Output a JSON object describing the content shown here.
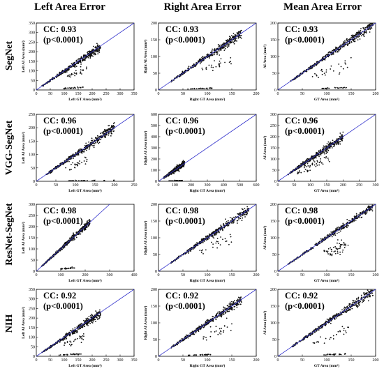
{
  "figure": {
    "column_titles": [
      "Left Area Error",
      "Right Area Error",
      "Mean Area Error"
    ],
    "row_titles": [
      "SegNet",
      "VGG-SegNet",
      "ResNet-SegNet",
      "NIH"
    ]
  },
  "chart_data": [
    {
      "type": "scatter",
      "row": "SegNet",
      "column": "Left Area Error",
      "xlabel": "Left GT Area (mm²)",
      "ylabel": "Left AI Area (mm²)",
      "xlim": [
        0,
        350
      ],
      "ylim": [
        0,
        350
      ],
      "xticks": [
        0,
        50,
        100,
        150,
        200,
        250,
        300,
        350
      ],
      "yticks": [
        0,
        50,
        100,
        150,
        200,
        250,
        300,
        350
      ],
      "cc_label": "CC: 0.93",
      "p_label": "(p<0.0001)",
      "cluster": [
        20,
        230
      ],
      "slope": 0.98,
      "spread": 0.08,
      "outlier_bands": [
        [
          90,
          170,
          0.08
        ],
        [
          110,
          180,
          0.62
        ]
      ]
    },
    {
      "type": "scatter",
      "row": "SegNet",
      "column": "Right Area Error",
      "xlabel": "Right GT Area (mm²)",
      "ylabel": "Right AI Area (mm²)",
      "xlim": [
        0,
        200
      ],
      "ylim": [
        0,
        200
      ],
      "xticks": [
        0,
        50,
        100,
        150,
        200
      ],
      "yticks": [
        0,
        50,
        100,
        150,
        200
      ],
      "cc_label": "CC: 0.93",
      "p_label": "(p<0.0001)",
      "cluster": [
        25,
        170
      ],
      "slope": 1.0,
      "spread": 0.07,
      "outlier_bands": [
        [
          60,
          110,
          0.05
        ],
        [
          80,
          150,
          0.65
        ]
      ]
    },
    {
      "type": "scatter",
      "row": "SegNet",
      "column": "Mean Area Error",
      "xlabel": "GT Area (mm²)",
      "ylabel": "AI Area (mm²)",
      "xlim": [
        0,
        200
      ],
      "ylim": [
        0,
        200
      ],
      "xticks": [
        0,
        50,
        100,
        150,
        200
      ],
      "yticks": [
        0,
        50,
        100,
        150,
        200
      ],
      "cc_label": "CC: 0.93",
      "p_label": "(p<0.0001)",
      "cluster": [
        25,
        195
      ],
      "slope": 1.0,
      "spread": 0.06,
      "outlier_bands": [
        [
          70,
          150,
          0.55
        ],
        [
          90,
          140,
          0.05
        ]
      ]
    },
    {
      "type": "scatter",
      "row": "VGG-SegNet",
      "column": "Left Area Error",
      "xlabel": "Left GT Area (mm²)",
      "ylabel": "Left AI Area (mm²)",
      "xlim": [
        0,
        250
      ],
      "ylim": [
        0,
        250
      ],
      "xticks": [
        0,
        50,
        100,
        150,
        200,
        250
      ],
      "yticks": [
        0,
        50,
        100,
        150,
        200,
        250
      ],
      "cc_label": "CC: 0.96",
      "p_label": "(p<0.0001)",
      "cluster": [
        25,
        200
      ],
      "slope": 1.0,
      "spread": 0.08,
      "outlier_bands": [
        [
          80,
          200,
          0.02
        ],
        [
          70,
          130,
          0.6
        ]
      ]
    },
    {
      "type": "scatter",
      "row": "VGG-SegNet",
      "column": "Right Area Error",
      "xlabel": "Right GT Area (mm²)",
      "ylabel": "Right AI Area (mm²)",
      "xlim": [
        0,
        600
      ],
      "ylim": [
        0,
        600
      ],
      "xticks": [
        0,
        100,
        200,
        300,
        400,
        500,
        600
      ],
      "yticks": [
        0,
        100,
        200,
        300,
        400,
        500,
        600
      ],
      "cc_label": "CC: 0.96",
      "p_label": "(p<0.0001)",
      "cluster": [
        30,
        160
      ],
      "slope": 1.0,
      "spread": 0.15,
      "outlier_bands": [
        [
          60,
          150,
          0.05
        ]
      ]
    },
    {
      "type": "scatter",
      "row": "VGG-SegNet",
      "column": "Mean Area Error",
      "xlabel": "GT Area (mm²)",
      "ylabel": "AI Area (mm²)",
      "xlim": [
        0,
        300
      ],
      "ylim": [
        0,
        300
      ],
      "xticks": [
        0,
        50,
        100,
        150,
        200,
        250,
        300
      ],
      "yticks": [
        0,
        50,
        100,
        150,
        200,
        250,
        300
      ],
      "cc_label": "CC: 0.96",
      "p_label": "(p<0.0001)",
      "cluster": [
        30,
        200
      ],
      "slope": 1.0,
      "spread": 0.08,
      "outlier_bands": [
        [
          60,
          140,
          0.6
        ],
        [
          80,
          160,
          0.75
        ]
      ]
    },
    {
      "type": "scatter",
      "row": "ResNet-SegNet",
      "column": "Left Area Error",
      "xlabel": "Left GT Area (mm²)",
      "ylabel": "Left AI Area (mm²)",
      "xlim": [
        0,
        400
      ],
      "ylim": [
        0,
        300
      ],
      "xticks": [
        0,
        100,
        200,
        300,
        400
      ],
      "yticks": [
        0,
        50,
        100,
        150,
        200,
        250,
        300
      ],
      "cc_label": "CC: 0.98",
      "p_label": "(p<0.0001)",
      "cluster": [
        20,
        220
      ],
      "slope": 1.0,
      "spread": 0.06,
      "outlier_bands": [
        [
          90,
          160,
          0.1
        ]
      ]
    },
    {
      "type": "scatter",
      "row": "ResNet-SegNet",
      "column": "Right Area Error",
      "xlabel": "Right GT Area (mm²)",
      "ylabel": "Right AI Area (mm²)",
      "xlim": [
        0,
        200
      ],
      "ylim": [
        0,
        200
      ],
      "xticks": [
        0,
        50,
        100,
        150,
        200
      ],
      "yticks": [
        0,
        50,
        100,
        150,
        200
      ],
      "cc_label": "CC: 0.98",
      "p_label": "(p<0.0001)",
      "cluster": [
        25,
        185
      ],
      "slope": 1.0,
      "spread": 0.06,
      "outlier_bands": [
        [
          80,
          150,
          0.7
        ]
      ]
    },
    {
      "type": "scatter",
      "row": "ResNet-SegNet",
      "column": "Mean Area Error",
      "xlabel": "GT Area (mm²)",
      "ylabel": "AI Area (mm²)",
      "xlim": [
        0,
        200
      ],
      "ylim": [
        0,
        200
      ],
      "xticks": [
        0,
        50,
        100,
        150,
        200
      ],
      "yticks": [
        0,
        50,
        100,
        150,
        200
      ],
      "cc_label": "CC: 0.98",
      "p_label": "(p<0.0001)",
      "cluster": [
        20,
        195
      ],
      "slope": 1.0,
      "spread": 0.05,
      "outlier_bands": [
        [
          90,
          150,
          0.62
        ],
        [
          100,
          140,
          0.5
        ]
      ]
    },
    {
      "type": "scatter",
      "row": "NIH",
      "column": "Left Area Error",
      "xlabel": "Left GT Area (mm²)",
      "ylabel": "Left AI Area (mm²)",
      "xlim": [
        0,
        350
      ],
      "ylim": [
        0,
        350
      ],
      "xticks": [
        0,
        50,
        100,
        150,
        200,
        250,
        300,
        350
      ],
      "yticks": [
        0,
        50,
        100,
        150,
        200,
        250,
        300,
        350
      ],
      "cc_label": "CC: 0.92",
      "p_label": "(p<0.0001)",
      "cluster": [
        20,
        230
      ],
      "slope": 0.98,
      "spread": 0.08,
      "outlier_bands": [
        [
          80,
          160,
          0.08
        ],
        [
          100,
          170,
          0.6
        ]
      ]
    },
    {
      "type": "scatter",
      "row": "NIH",
      "column": "Right Area Error",
      "xlabel": "Right GT Area (mm²)",
      "ylabel": "Right AI Area (mm²)",
      "xlim": [
        0,
        200
      ],
      "ylim": [
        0,
        200
      ],
      "xticks": [
        0,
        50,
        100,
        150,
        200
      ],
      "yticks": [
        0,
        50,
        100,
        150,
        200
      ],
      "cc_label": "CC: 0.92",
      "p_label": "(p<0.0001)",
      "cluster": [
        25,
        170
      ],
      "slope": 1.0,
      "spread": 0.07,
      "outlier_bands": [
        [
          60,
          110,
          0.05
        ],
        [
          80,
          150,
          0.65
        ]
      ]
    },
    {
      "type": "scatter",
      "row": "NIH",
      "column": "Mean Area Error",
      "xlabel": "GT Area (mm²)",
      "ylabel": "AI Area (mm²)",
      "xlim": [
        0,
        200
      ],
      "ylim": [
        0,
        200
      ],
      "xticks": [
        0,
        50,
        100,
        150,
        200
      ],
      "yticks": [
        0,
        50,
        100,
        150,
        200
      ],
      "cc_label": "CC: 0.92",
      "p_label": "(p<0.0001)",
      "cluster": [
        25,
        195
      ],
      "slope": 1.0,
      "spread": 0.06,
      "outlier_bands": [
        [
          70,
          150,
          0.55
        ],
        [
          90,
          140,
          0.05
        ]
      ]
    }
  ],
  "style": {
    "identity_line_color": "#3333cc",
    "point_color": "#111111"
  }
}
